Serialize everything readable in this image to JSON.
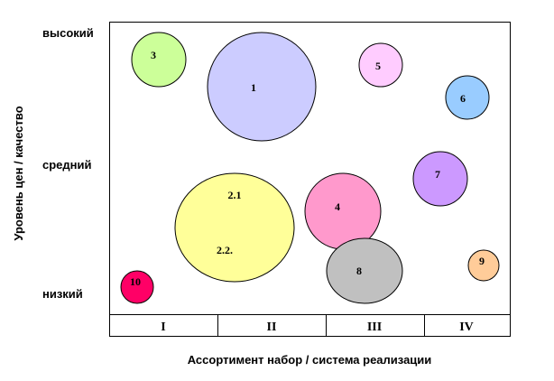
{
  "y_axis_title": "Уровень цен / качество",
  "x_axis_title": "Ассортимент набор / система реализации",
  "y_levels": {
    "high": "высокий",
    "mid": "средний",
    "low": "низкий"
  },
  "columns": [
    "I",
    "II",
    "III",
    "IV"
  ],
  "bubbles": [
    {
      "id": "3",
      "label": "3",
      "color": "#ccff99"
    },
    {
      "id": "1",
      "label": "1",
      "color": "#ccccff"
    },
    {
      "id": "5",
      "label": "5",
      "color": "#ffccff"
    },
    {
      "id": "6",
      "label": "6",
      "color": "#99ccff"
    },
    {
      "id": "7",
      "label": "7",
      "color": "#cc99ff"
    },
    {
      "id": "2",
      "label": "2.1",
      "label2": "2.2.",
      "color": "#ffff99"
    },
    {
      "id": "4",
      "label": "4",
      "color": "#ff99cc"
    },
    {
      "id": "8",
      "label": "8",
      "color": "#c0c0c0"
    },
    {
      "id": "9",
      "label": "9",
      "color": "#ffcc99"
    },
    {
      "id": "10",
      "label": "10",
      "color": "#ff0066"
    }
  ]
}
